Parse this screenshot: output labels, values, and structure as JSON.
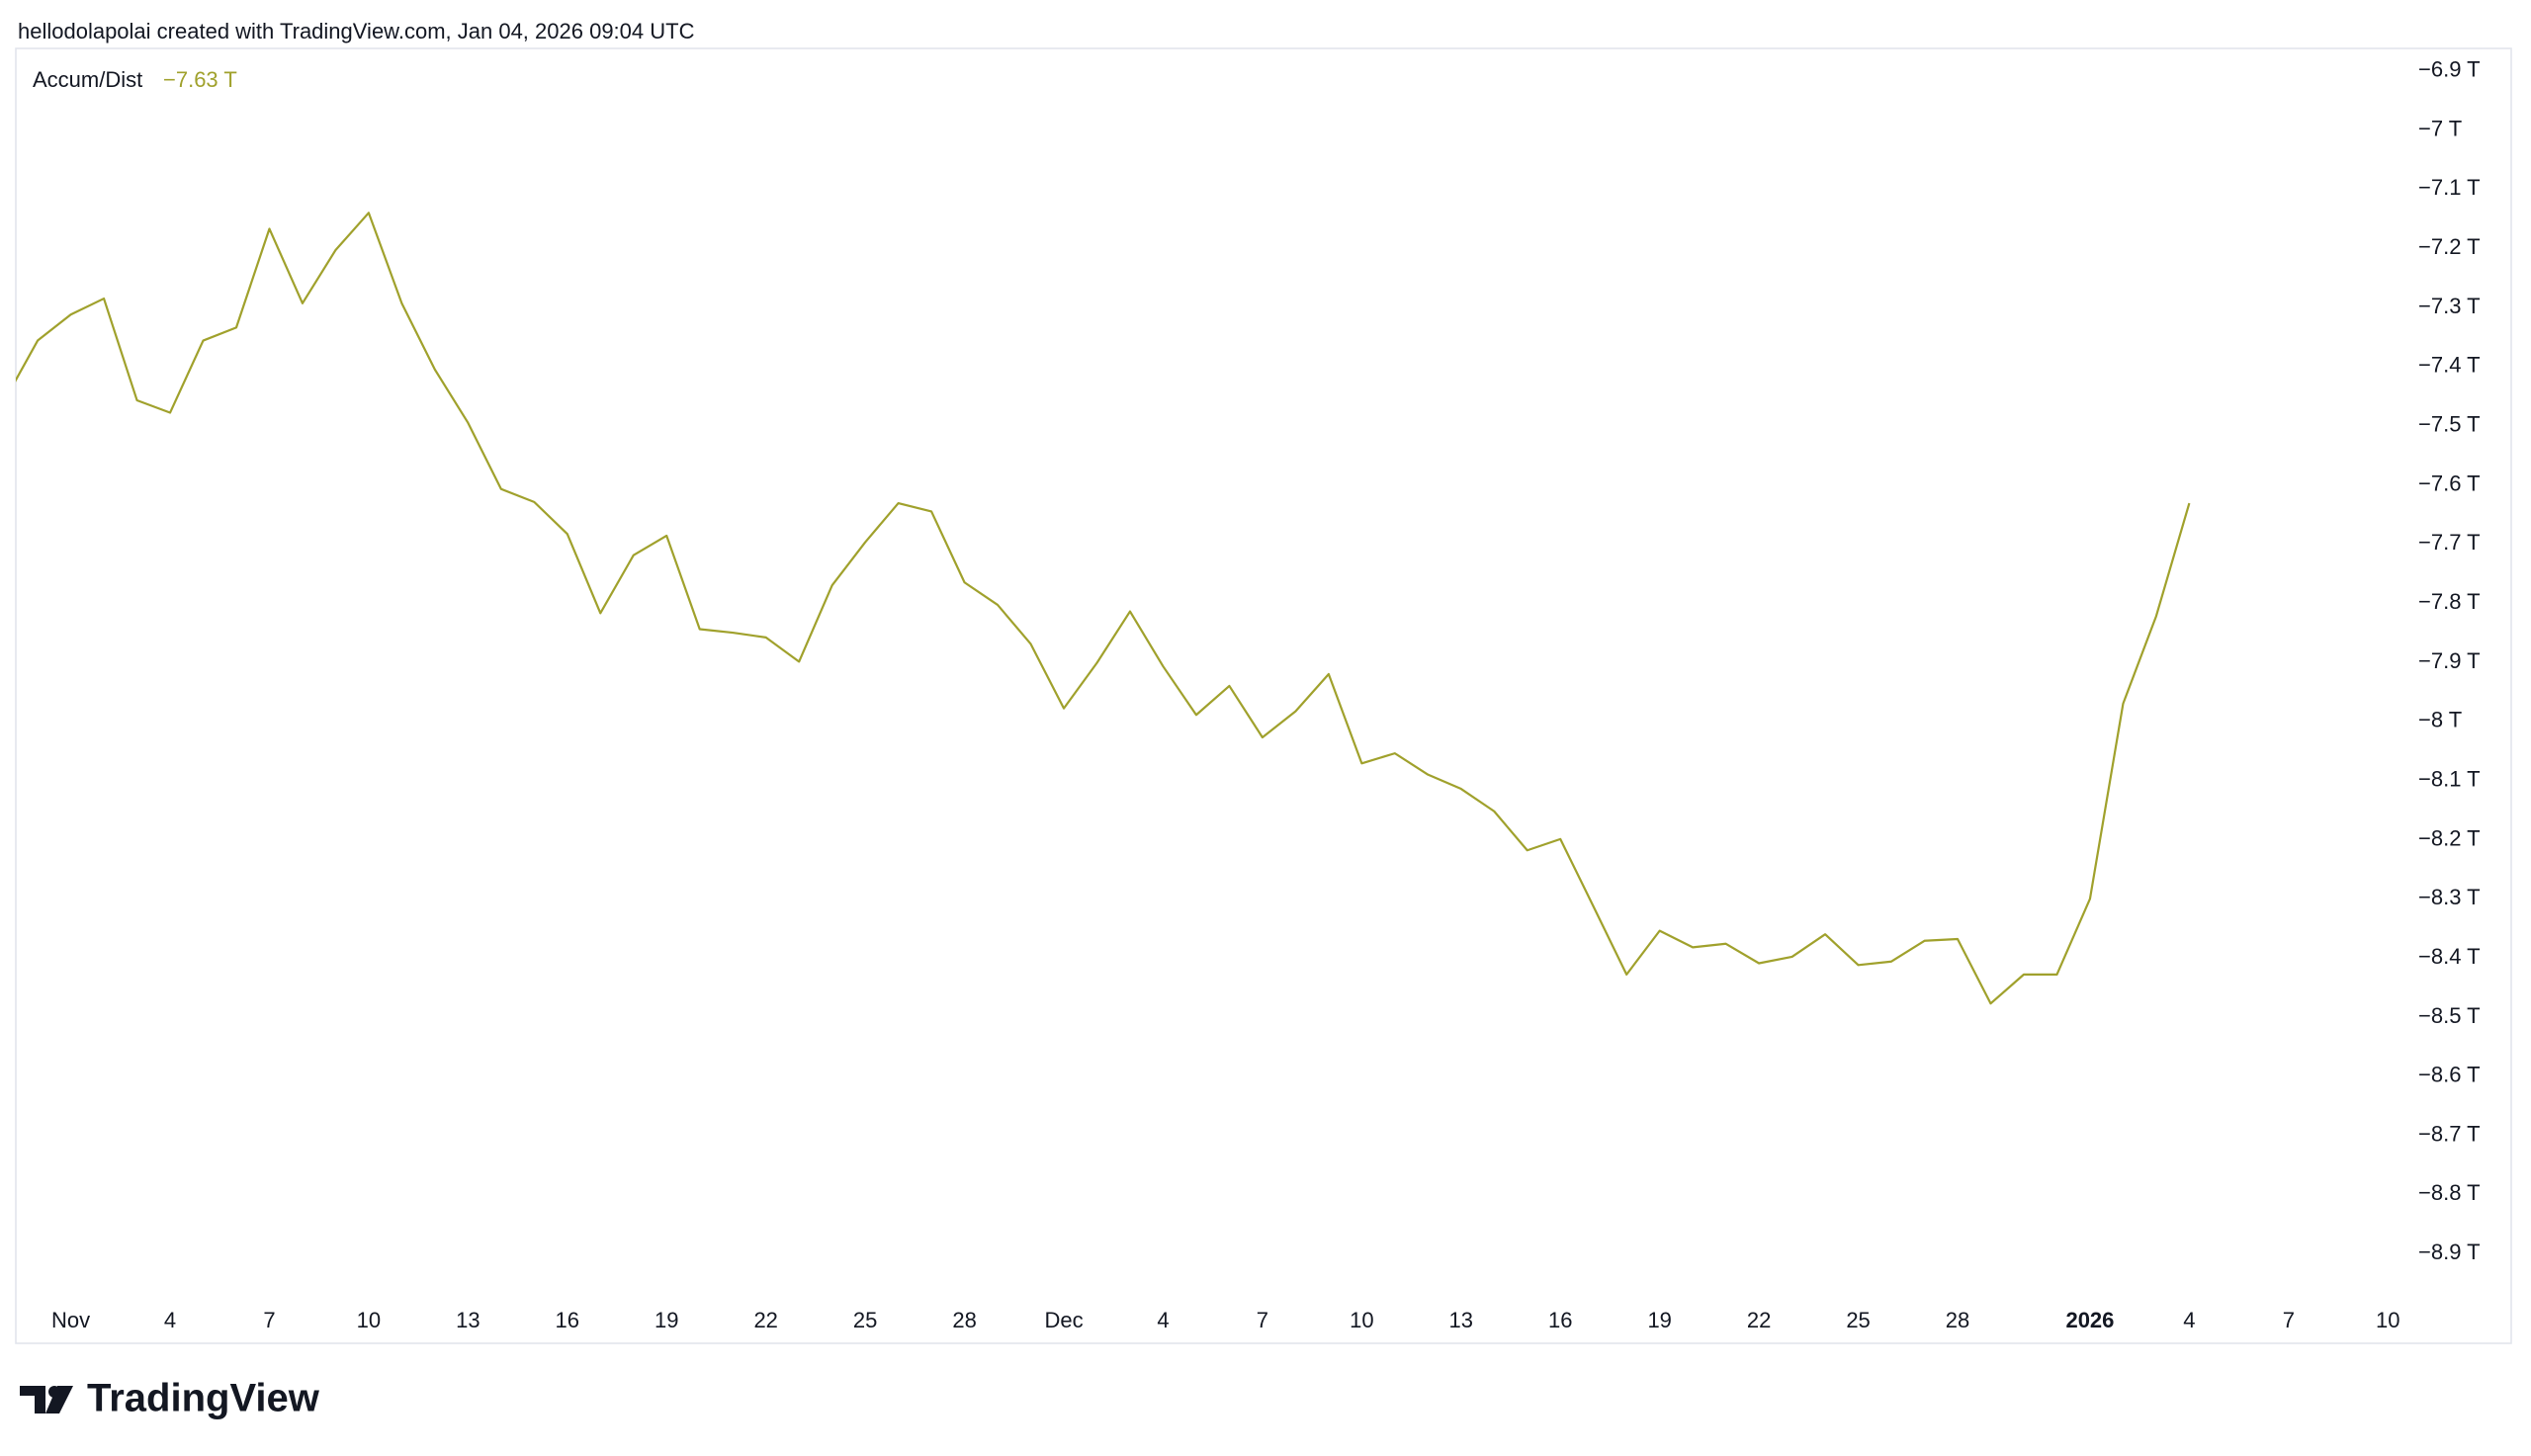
{
  "header": {
    "text": "hellodolapolai created with TradingView.com, Jan 04, 2026 09:04 UTC"
  },
  "chart_data": {
    "type": "line",
    "x": [
      -2,
      -1,
      0,
      1,
      2,
      3,
      4,
      5,
      6,
      7,
      8,
      9,
      10,
      11,
      12,
      13,
      14,
      15,
      16,
      17,
      18,
      19,
      20,
      21,
      22,
      23,
      24,
      25,
      26,
      27,
      28,
      29,
      30,
      31,
      32,
      33,
      34,
      35,
      36,
      37,
      38,
      39,
      40,
      41,
      42,
      43,
      44,
      45,
      46,
      47,
      48,
      49,
      50,
      51,
      52,
      53,
      54,
      55,
      56,
      57,
      58,
      59,
      60,
      61,
      62,
      63,
      64
    ],
    "series": [
      {
        "name": "Accum/Dist",
        "color": "#a0a12c",
        "values": [
          -7.457,
          -7.356,
          -7.312,
          -7.285,
          -7.457,
          -7.478,
          -7.356,
          -7.334,
          -7.167,
          -7.293,
          -7.203,
          -7.14,
          -7.293,
          -7.405,
          -7.495,
          -7.607,
          -7.629,
          -7.683,
          -7.817,
          -7.719,
          -7.686,
          -7.844,
          -7.85,
          -7.858,
          -7.899,
          -7.77,
          -7.697,
          -7.631,
          -7.645,
          -7.765,
          -7.803,
          -7.869,
          -7.978,
          -7.901,
          -7.814,
          -7.907,
          -7.989,
          -7.94,
          -8.027,
          -7.983,
          -7.92,
          -8.071,
          -8.054,
          -8.09,
          -8.114,
          -8.152,
          -8.218,
          -8.199,
          -8.313,
          -8.428,
          -8.354,
          -8.382,
          -8.376,
          -8.409,
          -8.398,
          -8.36,
          -8.412,
          -8.406,
          -8.371,
          -8.368,
          -8.477,
          -8.428,
          -8.428,
          -8.3,
          -7.97,
          -7.822,
          -7.631
        ],
        "value_labels": [
          null,
          null,
          null,
          null,
          null,
          null,
          null,
          null,
          null,
          null,
          null,
          null,
          null,
          null,
          null,
          null,
          null,
          null,
          null,
          null,
          null,
          null,
          null,
          null,
          null,
          null,
          null,
          null,
          null,
          null,
          null,
          null,
          null,
          null,
          null,
          null,
          null,
          null,
          null,
          null,
          null,
          null,
          null,
          null,
          null,
          null,
          null,
          null,
          null,
          null,
          null,
          null,
          null,
          null,
          null,
          null,
          null,
          null,
          null,
          null,
          null,
          null,
          null,
          null,
          null,
          null,
          "−7.63 T"
        ]
      }
    ],
    "xlim": [
      -1.66,
      70.44
    ],
    "xticks": [
      {
        "value": 0,
        "label": "Nov"
      },
      {
        "value": 3,
        "label": "4"
      },
      {
        "value": 6,
        "label": "7"
      },
      {
        "value": 9,
        "label": "10"
      },
      {
        "value": 12,
        "label": "13"
      },
      {
        "value": 15,
        "label": "16"
      },
      {
        "value": 18,
        "label": "19"
      },
      {
        "value": 21,
        "label": "22"
      },
      {
        "value": 24,
        "label": "25"
      },
      {
        "value": 27,
        "label": "28"
      },
      {
        "value": 30,
        "label": "Dec"
      },
      {
        "value": 33,
        "label": "4"
      },
      {
        "value": 36,
        "label": "7"
      },
      {
        "value": 39,
        "label": "10"
      },
      {
        "value": 42,
        "label": "13"
      },
      {
        "value": 45,
        "label": "16"
      },
      {
        "value": 48,
        "label": "19"
      },
      {
        "value": 51,
        "label": "22"
      },
      {
        "value": 54,
        "label": "25"
      },
      {
        "value": 57,
        "label": "28"
      },
      {
        "value": 61,
        "label": "2026"
      },
      {
        "value": 64,
        "label": "4"
      },
      {
        "value": 67,
        "label": "7"
      },
      {
        "value": 70,
        "label": "10"
      }
    ],
    "ylim": [
      -9.05,
      -6.862
    ],
    "yticks": [
      {
        "value": -6.9,
        "label": "−6.9 T"
      },
      {
        "value": -7,
        "label": "−7 T"
      },
      {
        "value": -7.1,
        "label": "−7.1 T"
      },
      {
        "value": -7.2,
        "label": "−7.2 T"
      },
      {
        "value": -7.3,
        "label": "−7.3 T"
      },
      {
        "value": -7.4,
        "label": "−7.4 T"
      },
      {
        "value": -7.5,
        "label": "−7.5 T"
      },
      {
        "value": -7.6,
        "label": "−7.6 T"
      },
      {
        "value": -7.7,
        "label": "−7.7 T"
      },
      {
        "value": -7.8,
        "label": "−7.8 T"
      },
      {
        "value": -7.9,
        "label": "−7.9 T"
      },
      {
        "value": -8,
        "label": "−8 T"
      },
      {
        "value": -8.1,
        "label": "−8.1 T"
      },
      {
        "value": -8.2,
        "label": "−8.2 T"
      },
      {
        "value": -8.3,
        "label": "−8.3 T"
      },
      {
        "value": -8.4,
        "label": "−8.4 T"
      },
      {
        "value": -8.5,
        "label": "−8.5 T"
      },
      {
        "value": -8.6,
        "label": "−8.6 T"
      },
      {
        "value": -8.7,
        "label": "−8.7 T"
      },
      {
        "value": -8.8,
        "label": "−8.8 T"
      },
      {
        "value": -8.9,
        "label": "−8.9 T"
      }
    ]
  },
  "footer": {
    "logo_text": "TradingView"
  }
}
